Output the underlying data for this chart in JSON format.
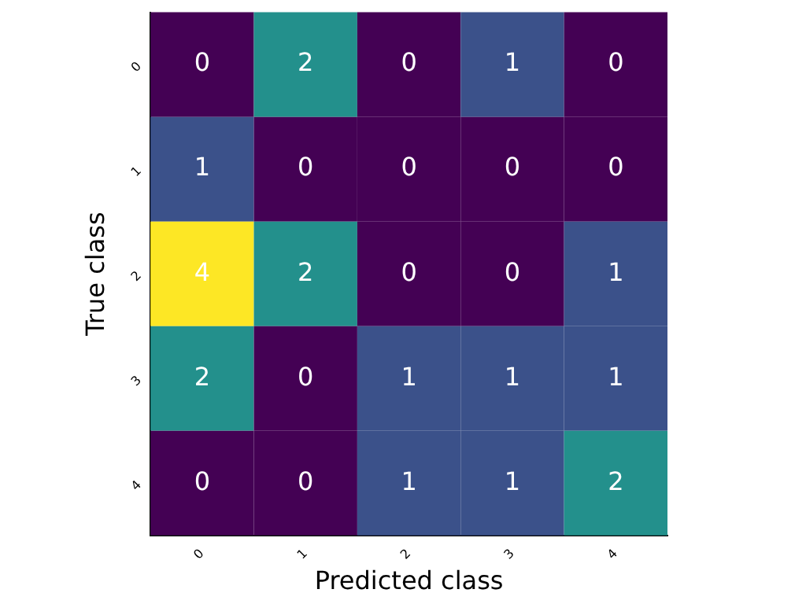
{
  "chart_data": {
    "type": "heatmap",
    "xlabel": "Predicted class",
    "ylabel": "True class",
    "categories": [
      "0",
      "1",
      "2",
      "3",
      "4"
    ],
    "y_categories": [
      "0",
      "1",
      "2",
      "3",
      "4"
    ],
    "cells": [
      [
        0,
        2,
        0,
        1,
        0
      ],
      [
        1,
        0,
        0,
        0,
        0
      ],
      [
        4,
        2,
        0,
        0,
        1
      ],
      [
        2,
        0,
        1,
        1,
        1
      ],
      [
        0,
        0,
        1,
        1,
        2
      ]
    ],
    "data_labels": true,
    "grid": false
  }
}
